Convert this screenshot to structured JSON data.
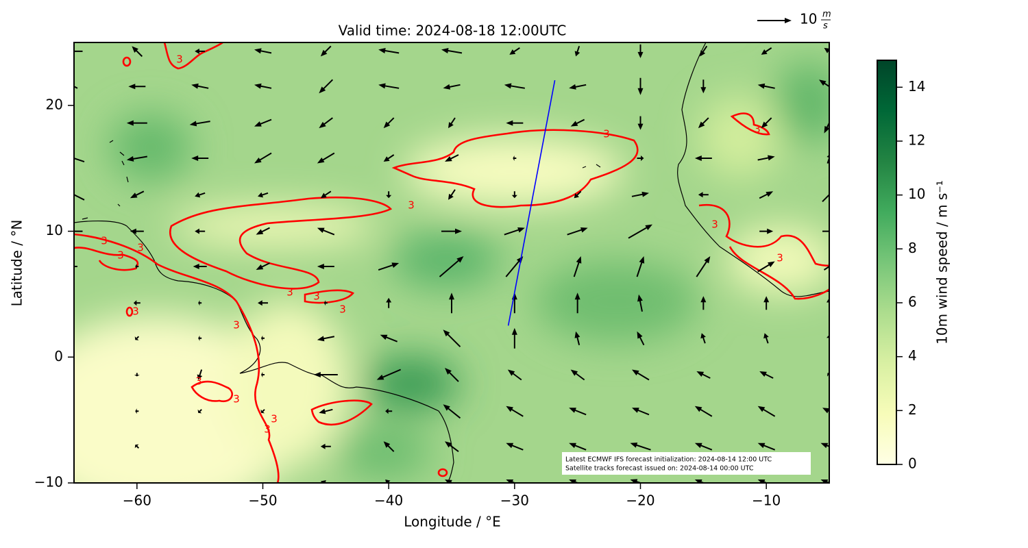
{
  "chart_data": {
    "type": "quiver_map",
    "title": "Valid time: 2024-08-18 12:00UTC",
    "xlabel": "Longitude / °E",
    "ylabel": "Latitude / °N",
    "xlim": [
      -65,
      -5
    ],
    "ylim": [
      -10,
      25
    ],
    "xticks": [
      {
        "value": -60,
        "label": "−60"
      },
      {
        "value": -50,
        "label": "−50"
      },
      {
        "value": -40,
        "label": "−40"
      },
      {
        "value": -30,
        "label": "−30"
      },
      {
        "value": -20,
        "label": "−20"
      },
      {
        "value": -10,
        "label": "−10"
      }
    ],
    "yticks": [
      {
        "value": -10,
        "label": "−10"
      },
      0,
      10,
      20
    ],
    "colorbar": {
      "label": "10m wind speed / m s⁻¹",
      "lim": [
        0,
        15
      ],
      "ticks": [
        0,
        2,
        4,
        6,
        8,
        10,
        12,
        14
      ],
      "colors": [
        "#ffffe5",
        "#f7fcb9",
        "#d9f0a3",
        "#addd8e",
        "#78c679",
        "#41ab5d",
        "#238443",
        "#006837",
        "#004529"
      ]
    },
    "wind": {
      "color": "#000000",
      "lon": [
        -65,
        -60,
        -55,
        -50,
        -45,
        -40,
        -35,
        -30,
        -25,
        -20,
        -15,
        -10,
        -5
      ],
      "lat": [
        24.3,
        21.5,
        18.6,
        15.8,
        12.9,
        10.0,
        7.2,
        4.3,
        1.5,
        -1.4,
        -4.3,
        -7.1,
        -10.0
      ],
      "u": [
        [
          -5,
          -3,
          -3,
          -5,
          -3,
          -6,
          -6,
          -3,
          -1,
          0,
          -2,
          -3,
          -3
        ],
        [
          -2,
          -5,
          -5,
          -5,
          -4,
          -6,
          -5,
          -6,
          -5,
          0,
          0,
          -5,
          -6
        ],
        [
          0,
          -6,
          -6,
          -5,
          -4,
          -3,
          -2,
          -5,
          -4,
          0,
          -3,
          -3,
          -3
        ],
        [
          -6,
          -6,
          -5,
          -5,
          -5,
          -3,
          -4,
          -1,
          0,
          2,
          -5,
          5,
          1
        ],
        [
          -6,
          -4,
          -3,
          -3,
          -3,
          0,
          -2,
          0,
          -2,
          5,
          -3,
          4,
          4
        ],
        [
          -5,
          -4,
          -3,
          -4,
          -5,
          0,
          6,
          6,
          6,
          7,
          0,
          4,
          4
        ],
        [
          -2,
          -1,
          -4,
          -4,
          -5,
          6,
          7,
          5,
          2,
          2,
          4,
          5,
          3
        ],
        [
          0,
          -2,
          -1,
          -3,
          -1,
          0,
          0,
          0,
          0,
          -1,
          0,
          0,
          0
        ],
        [
          0,
          -1,
          -1,
          -1,
          -5,
          -5,
          -5,
          0,
          -1,
          -2,
          -1,
          -1,
          0
        ],
        [
          0,
          0,
          -1,
          -1,
          -7,
          -7,
          -4,
          -4,
          -4,
          -5,
          -4,
          -4,
          -1
        ],
        [
          0,
          -1,
          -1,
          -1,
          -4,
          -2,
          -5,
          -5,
          -5,
          -5,
          -5,
          -5,
          -4
        ],
        [
          0,
          -1,
          0,
          0,
          -3,
          -3,
          -4,
          -5,
          -5,
          -6,
          -5,
          -5,
          -5
        ],
        [
          0,
          0,
          0,
          0,
          -3,
          -2,
          -4,
          -5,
          -5,
          -6,
          -5,
          -5,
          -5
        ]
      ],
      "v": [
        [
          0,
          3,
          0,
          1,
          -3,
          1,
          1,
          -2,
          -3,
          -4,
          -3,
          -2,
          2
        ],
        [
          1,
          0,
          1,
          1,
          -4,
          1,
          -1,
          1,
          -1,
          -5,
          -4,
          1,
          4
        ],
        [
          0,
          0,
          -1,
          -2,
          -3,
          -3,
          -3,
          0,
          -2,
          -4,
          -3,
          -3,
          -6
        ],
        [
          2,
          -1,
          0,
          -3,
          -3,
          -2,
          -2,
          0,
          0,
          0,
          0,
          1,
          3
        ],
        [
          3,
          -2,
          -1,
          -1,
          -2,
          -2,
          -3,
          -2,
          -2,
          1,
          0,
          2,
          4
        ],
        [
          0,
          0,
          0,
          -2,
          2,
          0,
          0,
          2,
          2,
          4,
          0,
          0,
          0
        ],
        [
          0,
          0,
          0,
          -2,
          0,
          2,
          6,
          6,
          6,
          6,
          6,
          3,
          2
        ],
        [
          0,
          0,
          0,
          0,
          0,
          3,
          6,
          6,
          6,
          5,
          4,
          4,
          3
        ],
        [
          0,
          -1,
          0,
          0,
          -1,
          2,
          5,
          6,
          4,
          4,
          3,
          3,
          2
        ],
        [
          0,
          -1,
          -3,
          0,
          0,
          -3,
          4,
          3,
          3,
          3,
          2,
          2,
          1
        ],
        [
          0,
          0,
          -1,
          -1,
          -1,
          0,
          4,
          3,
          2,
          2,
          3,
          3,
          2
        ],
        [
          0,
          1,
          0,
          0,
          0,
          3,
          3,
          2,
          2,
          2,
          2,
          2,
          2
        ],
        [
          0,
          0,
          0,
          0,
          1,
          2,
          2,
          2,
          2,
          2,
          2,
          2,
          2
        ]
      ]
    },
    "quiver_key": {
      "value": 10,
      "unit_numerator": "m",
      "unit_denominator": "s"
    },
    "contour": {
      "level": 3,
      "color": "#ff0000"
    },
    "track": {
      "lon": [
        -30.5,
        -26.8
      ],
      "lat": [
        2.5,
        22
      ],
      "color": "#0000ff"
    },
    "annotation": [
      "Latest ECMWF IFS forecast initialization: 2024-08-14 12:00 UTC",
      "Satellite tracks forecast issued on: 2024-08-14 00:00 UTC"
    ]
  }
}
